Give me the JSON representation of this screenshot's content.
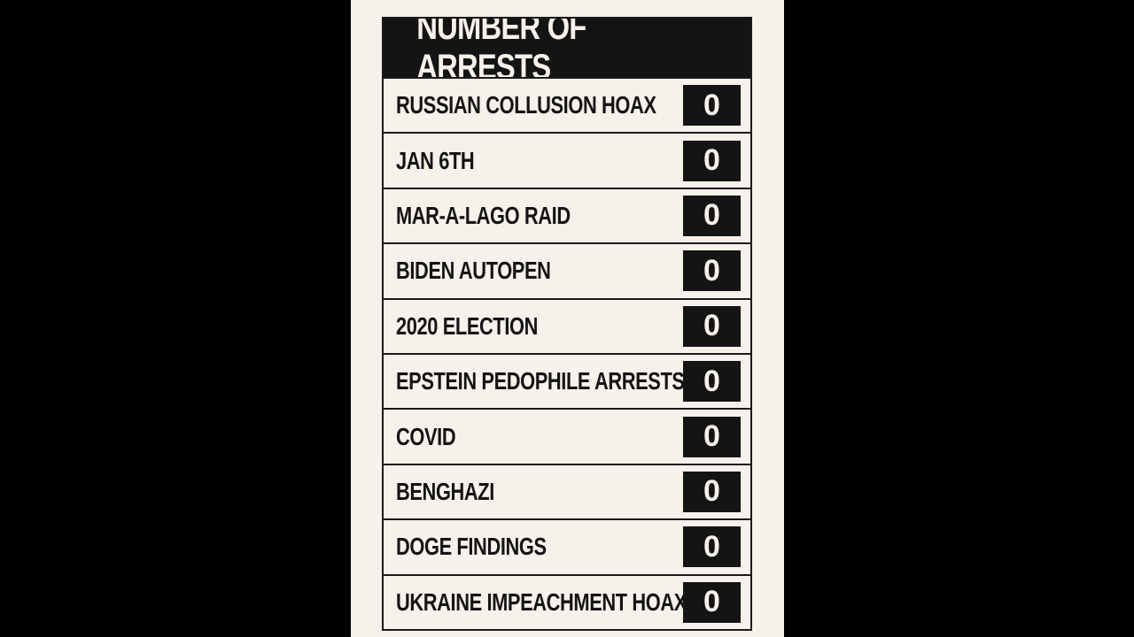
{
  "title": "NUMBER OF ARRESTS",
  "rows": [
    {
      "label": "RUSSIAN COLLUSION HOAX",
      "value": "0"
    },
    {
      "label": "JAN 6TH",
      "value": "0"
    },
    {
      "label": "MAR-A-LAGO RAID",
      "value": "0"
    },
    {
      "label": "BIDEN AUTOPEN",
      "value": "0"
    },
    {
      "label": "2020 ELECTION",
      "value": "0"
    },
    {
      "label": "EPSTEIN PEDOPHILE ARRESTS",
      "value": "0"
    },
    {
      "label": "COVID",
      "value": "0"
    },
    {
      "label": "BENGHAZI",
      "value": "0"
    },
    {
      "label": "DOGE FINDINGS",
      "value": "0"
    },
    {
      "label": "UKRAINE IMPEACHMENT HOAX",
      "value": "0"
    }
  ],
  "colors": {
    "background": "#f6f1ea",
    "ink": "#141414",
    "letterbox": "#000000"
  }
}
